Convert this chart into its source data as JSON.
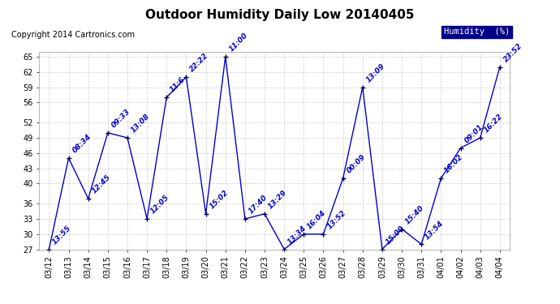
{
  "title": "Outdoor Humidity Daily Low 20140405",
  "copyright": "Copyright 2014 Cartronics.com",
  "legend_label": "Humidity  (%)",
  "x_labels": [
    "03/12",
    "03/13",
    "03/14",
    "03/15",
    "03/16",
    "03/17",
    "03/18",
    "03/19",
    "03/20",
    "03/21",
    "03/22",
    "03/23",
    "03/24",
    "03/25",
    "03/26",
    "03/27",
    "03/28",
    "03/29",
    "03/30",
    "03/31",
    "04/01",
    "04/02",
    "04/03",
    "04/04"
  ],
  "y_values": [
    27,
    45,
    37,
    50,
    49,
    33,
    57,
    61,
    34,
    65,
    33,
    34,
    27,
    30,
    30,
    41,
    59,
    27,
    31,
    28,
    41,
    47,
    49,
    63
  ],
  "time_labels": [
    "13:55",
    "08:34",
    "12:45",
    "09:33",
    "13:08",
    "12:05",
    "11:6",
    "22:22",
    "15:02",
    "11:00",
    "17:40",
    "13:29",
    "13:34",
    "16:04",
    "13:52",
    "00:09",
    "13:09",
    "15:00",
    "15:40",
    "13:54",
    "16:02",
    "09:01",
    "16:22",
    "23:52"
  ],
  "ylim_min": 27,
  "ylim_max": 66,
  "yticks": [
    27,
    30,
    33,
    36,
    40,
    43,
    46,
    49,
    52,
    56,
    59,
    62,
    65
  ],
  "line_color": "#0000cc",
  "marker_color": "#000055",
  "bg_color": "#ffffff",
  "grid_color": "#cccccc",
  "title_fontsize": 11,
  "label_fontsize": 7,
  "time_fontsize": 6.5,
  "copyright_fontsize": 7
}
